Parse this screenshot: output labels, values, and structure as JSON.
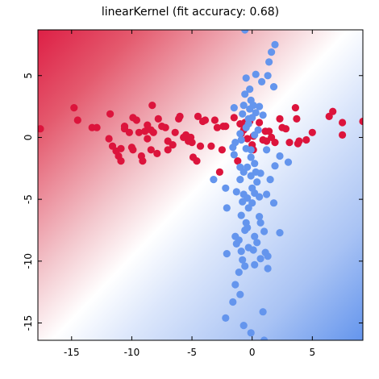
{
  "chart_data": {
    "type": "scatter",
    "title": "linearKernel (fit accuracy: 0.68)",
    "xlabel": "",
    "ylabel": "",
    "xlim": [
      -17.8,
      9.2
    ],
    "ylim": [
      -16.4,
      8.7
    ],
    "xticks": [
      -15,
      -10,
      -5,
      0,
      5
    ],
    "yticks": [
      -15,
      -10,
      -5,
      0,
      5
    ],
    "tick_labels_x": [
      "-15",
      "-10",
      "-5",
      "0",
      "5"
    ],
    "tick_labels_y": [
      "-15",
      "-10",
      "-5",
      "0",
      "5"
    ],
    "grid": false,
    "legend": "none",
    "background": "decision-function gradient (red upper-left, white diagonal, blue lower-right)",
    "colors": {
      "red_class": "#dc143c",
      "blue_class": "#6495ed",
      "region_red": "#dc143c",
      "region_blue": "#6495ed"
    },
    "series": [
      {
        "color": "#dc143c",
        "points": [
          [
            -17.6,
            0.7
          ],
          [
            -14.8,
            2.4
          ],
          [
            -14.5,
            1.4
          ],
          [
            -13.3,
            0.8
          ],
          [
            -12.9,
            0.8
          ],
          [
            -11.8,
            1.9
          ],
          [
            -11.9,
            -0.1
          ],
          [
            -11.6,
            -0.7
          ],
          [
            -11.3,
            -1.1
          ],
          [
            -11.1,
            -1.5
          ],
          [
            -10.9,
            -1.9
          ],
          [
            -10.9,
            -0.9
          ],
          [
            -10.6,
            0.7
          ],
          [
            -10.6,
            0.9
          ],
          [
            -10.2,
            0.4
          ],
          [
            -10.0,
            -0.8
          ],
          [
            -9.9,
            -1.0
          ],
          [
            -9.9,
            1.6
          ],
          [
            -9.6,
            1.4
          ],
          [
            -9.4,
            0.4
          ],
          [
            -9.2,
            -1.5
          ],
          [
            -9.1,
            -1.9
          ],
          [
            -8.9,
            0.5
          ],
          [
            -8.7,
            -0.1
          ],
          [
            -8.7,
            1.0
          ],
          [
            -8.4,
            0.6
          ],
          [
            -8.4,
            -1.0
          ],
          [
            -8.2,
            0.4
          ],
          [
            -8.3,
            2.6
          ],
          [
            -7.9,
            -1.3
          ],
          [
            -7.8,
            1.5
          ],
          [
            -7.5,
            0.9
          ],
          [
            -7.2,
            0.8
          ],
          [
            -7.0,
            -1.0
          ],
          [
            -7.0,
            -0.3
          ],
          [
            -6.6,
            -0.6
          ],
          [
            -6.4,
            0.4
          ],
          [
            -6.1,
            1.5
          ],
          [
            -6.0,
            1.7
          ],
          [
            -5.7,
            0.0
          ],
          [
            -5.5,
            0.2
          ],
          [
            -5.3,
            -0.3
          ],
          [
            -5.1,
            0.0
          ],
          [
            -5.0,
            -0.4
          ],
          [
            -4.9,
            -1.6
          ],
          [
            -4.6,
            -1.9
          ],
          [
            -4.5,
            1.7
          ],
          [
            -4.3,
            -0.7
          ],
          [
            -4.1,
            1.3
          ],
          [
            -3.9,
            1.4
          ],
          [
            -3.4,
            -0.7
          ],
          [
            -3.1,
            1.4
          ],
          [
            -2.9,
            0.8
          ],
          [
            -2.7,
            -2.8
          ],
          [
            -2.5,
            -1.0
          ],
          [
            -2.4,
            0.9
          ],
          [
            -2.2,
            0.9
          ],
          [
            -1.5,
            1.6
          ],
          [
            -1.2,
            -1.9
          ],
          [
            -1.0,
            1.1
          ],
          [
            -0.9,
            0.3
          ],
          [
            -0.7,
            0.6
          ],
          [
            -0.6,
            1.2
          ],
          [
            -0.4,
            -0.1
          ],
          [
            -0.2,
            1.3
          ],
          [
            0.0,
            -0.6
          ],
          [
            0.1,
            -1.0
          ],
          [
            0.1,
            0.1
          ],
          [
            0.6,
            1.2
          ],
          [
            0.9,
            -0.2
          ],
          [
            1.1,
            0.5
          ],
          [
            1.2,
            -0.3
          ],
          [
            1.4,
            0.5
          ],
          [
            1.6,
            0.0
          ],
          [
            1.9,
            -0.4
          ],
          [
            2.3,
            1.5
          ],
          [
            2.5,
            0.8
          ],
          [
            2.8,
            0.7
          ],
          [
            3.1,
            -0.4
          ],
          [
            3.6,
            2.4
          ],
          [
            3.7,
            1.5
          ],
          [
            3.8,
            -0.5
          ],
          [
            3.9,
            -0.3
          ],
          [
            4.5,
            -0.2
          ],
          [
            5.0,
            0.4
          ],
          [
            6.4,
            1.7
          ],
          [
            6.7,
            2.1
          ],
          [
            7.5,
            1.2
          ],
          [
            7.5,
            0.2
          ],
          [
            9.2,
            1.3
          ]
        ]
      },
      {
        "color": "#6495ed",
        "points": [
          [
            -0.6,
            8.7
          ],
          [
            1.6,
            6.9
          ],
          [
            1.9,
            7.5
          ],
          [
            1.4,
            6.1
          ],
          [
            1.3,
            5.0
          ],
          [
            0.8,
            4.5
          ],
          [
            -0.5,
            4.8
          ],
          [
            0.3,
            5.1
          ],
          [
            -0.2,
            3.9
          ],
          [
            -0.6,
            3.5
          ],
          [
            -0.1,
            3.0
          ],
          [
            0.1,
            2.6
          ],
          [
            0.6,
            2.5
          ],
          [
            0.3,
            2.0
          ],
          [
            -0.7,
            2.6
          ],
          [
            -0.2,
            2.3
          ],
          [
            0.9,
            1.8
          ],
          [
            -0.3,
            1.5
          ],
          [
            1.8,
            4.1
          ],
          [
            -1.5,
            2.4
          ],
          [
            -0.8,
            1.9
          ],
          [
            0.0,
            1.6
          ],
          [
            -0.3,
            1.1
          ],
          [
            0.5,
            0.6
          ],
          [
            0.2,
            0.2
          ],
          [
            -0.5,
            0.8
          ],
          [
            -1.0,
            0.3
          ],
          [
            -0.9,
            -0.2
          ],
          [
            -1.6,
            -0.8
          ],
          [
            -1.4,
            -0.4
          ],
          [
            -0.5,
            -0.9
          ],
          [
            -0.1,
            -1.0
          ],
          [
            1.2,
            -1.0
          ],
          [
            -1.5,
            -1.4
          ],
          [
            2.3,
            -1.5
          ],
          [
            -0.1,
            -1.6
          ],
          [
            0.2,
            -2.1
          ],
          [
            3.0,
            -2.0
          ],
          [
            -1.0,
            -2.4
          ],
          [
            -0.4,
            -2.4
          ],
          [
            1.9,
            -2.3
          ],
          [
            -0.7,
            -2.8
          ],
          [
            0.3,
            -2.8
          ],
          [
            -0.1,
            -3.1
          ],
          [
            0.7,
            -2.9
          ],
          [
            -1.0,
            -3.4
          ],
          [
            -3.2,
            -3.4
          ],
          [
            1.5,
            -3.4
          ],
          [
            0.4,
            -3.6
          ],
          [
            -2.2,
            -4.1
          ],
          [
            0.0,
            -4.1
          ],
          [
            -1.3,
            -4.4
          ],
          [
            -0.7,
            -4.6
          ],
          [
            -0.4,
            -4.9
          ],
          [
            0.2,
            -4.5
          ],
          [
            0.6,
            -4.8
          ],
          [
            1.2,
            -4.6
          ],
          [
            -0.8,
            -5.2
          ],
          [
            0.0,
            -5.3
          ],
          [
            1.8,
            -5.3
          ],
          [
            -2.1,
            -5.7
          ],
          [
            -0.3,
            -5.7
          ],
          [
            -0.9,
            -6.3
          ],
          [
            0.6,
            -6.4
          ],
          [
            -0.5,
            -6.9
          ],
          [
            0.7,
            -6.9
          ],
          [
            -0.4,
            -7.3
          ],
          [
            -0.6,
            -7.5
          ],
          [
            1.0,
            -7.6
          ],
          [
            2.3,
            -7.7
          ],
          [
            -1.4,
            -8.0
          ],
          [
            0.2,
            -8.0
          ],
          [
            -1.1,
            -8.3
          ],
          [
            -1.3,
            -8.6
          ],
          [
            0.4,
            -8.5
          ],
          [
            -0.3,
            -8.9
          ],
          [
            0.1,
            -9.1
          ],
          [
            -0.9,
            -9.2
          ],
          [
            1.1,
            -9.3
          ],
          [
            -2.1,
            -9.4
          ],
          [
            0.7,
            -9.8
          ],
          [
            -0.8,
            -9.9
          ],
          [
            1.3,
            -9.6
          ],
          [
            -0.6,
            -10.4
          ],
          [
            0.2,
            -10.3
          ],
          [
            -1.1,
            -10.9
          ],
          [
            1.3,
            -10.6
          ],
          [
            -1.4,
            -11.9
          ],
          [
            -1.0,
            -12.7
          ],
          [
            -1.6,
            -13.3
          ],
          [
            0.9,
            -14.1
          ],
          [
            -2.2,
            -14.6
          ],
          [
            -0.7,
            -15.2
          ],
          [
            -0.1,
            -15.8
          ],
          [
            1.0,
            -16.4
          ]
        ]
      }
    ]
  }
}
